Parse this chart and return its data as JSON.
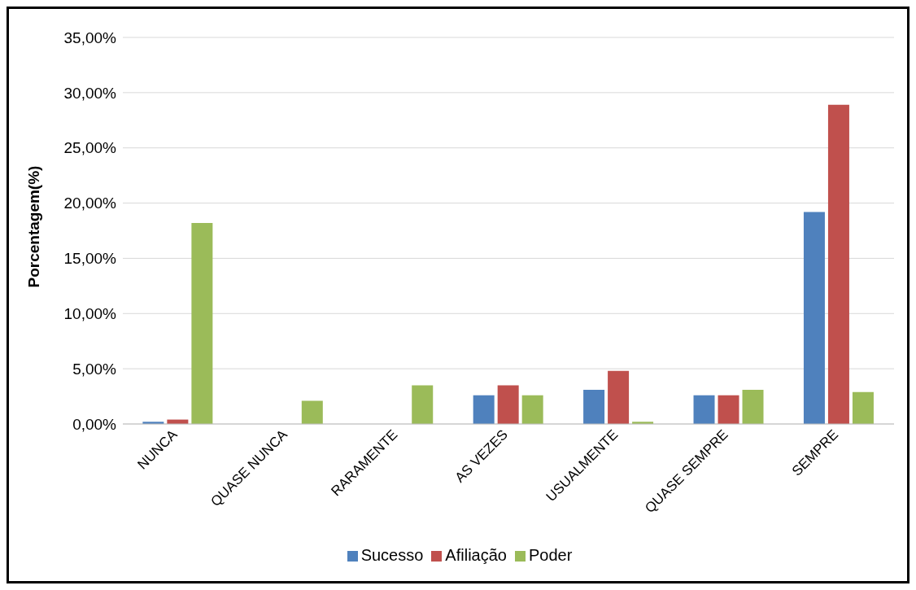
{
  "chart_data": {
    "type": "bar",
    "ylabel": "Porcentagem(%)",
    "categories": [
      "NUNCA",
      "QUASE NUNCA",
      "RARAMENTE",
      "AS VEZES",
      "USUALMENTE",
      "QUASE SEMPRE",
      "SEMPRE"
    ],
    "series": [
      {
        "name": "Sucesso",
        "color": "#4f81bd",
        "values": [
          0.2,
          0,
          0,
          2.6,
          3.1,
          2.6,
          19.2
        ]
      },
      {
        "name": "Afiliação",
        "color": "#c0504d",
        "values": [
          0.4,
          0,
          0,
          3.5,
          4.8,
          2.6,
          28.9
        ]
      },
      {
        "name": "Poder",
        "color": "#9bbb59",
        "values": [
          18.2,
          2.1,
          3.5,
          2.6,
          0.2,
          3.1,
          2.9
        ]
      }
    ],
    "ylim": [
      0,
      35
    ],
    "yticks": [
      {
        "value": 0,
        "label": "0,00%"
      },
      {
        "value": 5,
        "label": "5,00%"
      },
      {
        "value": 10,
        "label": "10,00%"
      },
      {
        "value": 15,
        "label": "15,00%"
      },
      {
        "value": 20,
        "label": "20,00%"
      },
      {
        "value": 25,
        "label": "25,00%"
      },
      {
        "value": 30,
        "label": "30,00%"
      },
      {
        "value": 35,
        "label": "35,00%"
      }
    ],
    "grid": "y",
    "legend": "bottom"
  }
}
